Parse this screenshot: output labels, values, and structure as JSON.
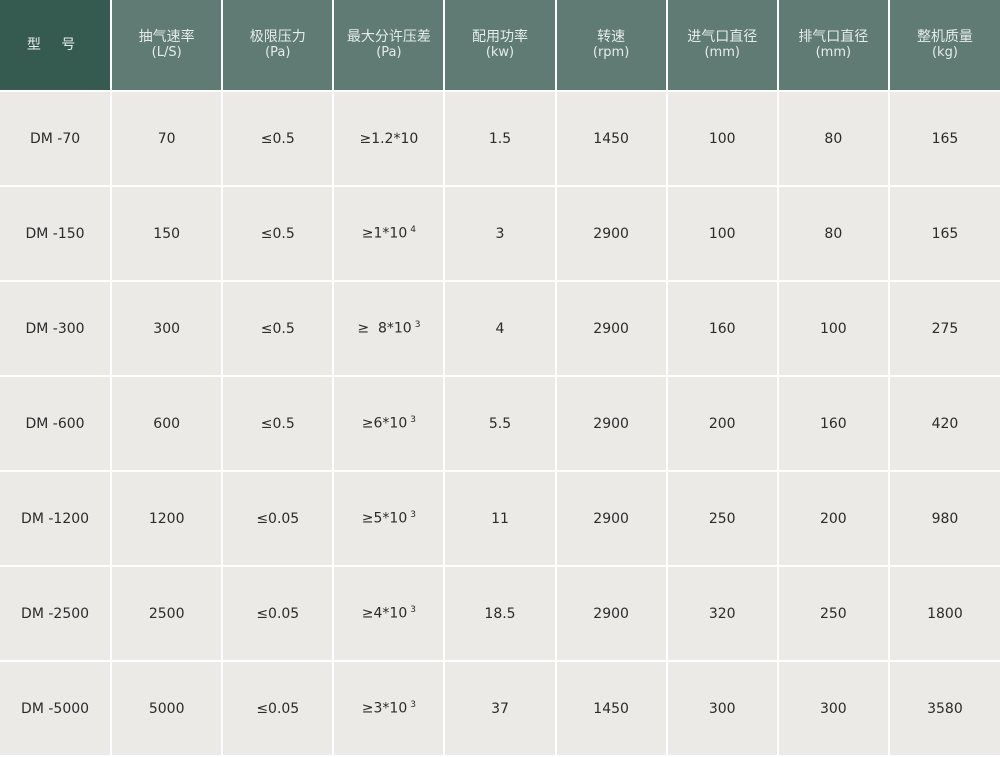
{
  "table": {
    "headers": [
      {
        "label": "型 号",
        "unit": ""
      },
      {
        "label": "抽气速率",
        "unit": "(L/S)"
      },
      {
        "label": "极限压力",
        "unit": "(Pa)"
      },
      {
        "label": "最大分许压差",
        "unit": "(Pa)"
      },
      {
        "label": "配用功率",
        "unit": "(kw)"
      },
      {
        "label": "转速",
        "unit": "(rpm)"
      },
      {
        "label": "进气口直径",
        "unit": "(mm)"
      },
      {
        "label": "排气口直径",
        "unit": "(mm)"
      },
      {
        "label": "整机质量",
        "unit": "(kg)"
      }
    ],
    "rows": [
      {
        "model": "DM -70",
        "speed": "70",
        "pressure": "≤0.5",
        "diff": "≥1.2*10",
        "diff_exp": "",
        "power": "1.5",
        "rpm": "1450",
        "inlet": "100",
        "outlet": "80",
        "mass": "165"
      },
      {
        "model": "DM -150",
        "speed": "150",
        "pressure": "≤0.5",
        "diff": "≥1*10",
        "diff_exp": "4",
        "power": "3",
        "rpm": "2900",
        "inlet": "100",
        "outlet": "80",
        "mass": "165"
      },
      {
        "model": "DM -300",
        "speed": "300",
        "pressure": "≤0.5",
        "diff": "≥  8*10",
        "diff_exp": "3",
        "power": "4",
        "rpm": "2900",
        "inlet": "160",
        "outlet": "100",
        "mass": "275"
      },
      {
        "model": "DM -600",
        "speed": "600",
        "pressure": "≤0.5",
        "diff": "≥6*10",
        "diff_exp": "3",
        "power": "5.5",
        "rpm": "2900",
        "inlet": "200",
        "outlet": "160",
        "mass": "420"
      },
      {
        "model": "DM -1200",
        "speed": "1200",
        "pressure": "≤0.05",
        "diff": "≥5*10",
        "diff_exp": "3",
        "power": "11",
        "rpm": "2900",
        "inlet": "250",
        "outlet": "200",
        "mass": "980"
      },
      {
        "model": "DM -2500",
        "speed": "2500",
        "pressure": "≤0.05",
        "diff": "≥4*10",
        "diff_exp": "3",
        "power": "18.5",
        "rpm": "2900",
        "inlet": "320",
        "outlet": "250",
        "mass": "1800"
      },
      {
        "model": "DM -5000",
        "speed": "5000",
        "pressure": "≤0.05",
        "diff": "≥3*10",
        "diff_exp": "3",
        "power": "37",
        "rpm": "1450",
        "inlet": "300",
        "outlet": "300",
        "mass": "3580"
      }
    ]
  },
  "colors": {
    "header_first": "#355a4f",
    "header": "#5f7b73",
    "body": "#ebeae6"
  }
}
